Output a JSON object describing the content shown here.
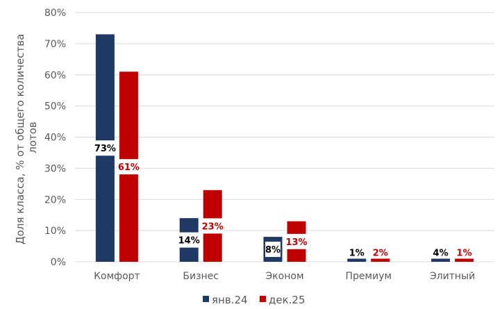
{
  "chart_data": {
    "type": "bar",
    "ylabel": "Доля класса, % от общего количества лотов",
    "ylim": [
      0,
      80
    ],
    "yticks": [
      "0%",
      "10%",
      "20%",
      "30%",
      "40%",
      "50%",
      "60%",
      "70%",
      "80%"
    ],
    "grid": true,
    "legend_position": "bottom",
    "categories": [
      "Комфорт",
      "Бизнес",
      "Эконом",
      "Премиум",
      "Элитный"
    ],
    "series": [
      {
        "name": "янв.24",
        "color": "#1f3864",
        "label_color": "#000000",
        "values": [
          73,
          14,
          8,
          1,
          4
        ],
        "labels": [
          "73%",
          "14%",
          "8%",
          "1%",
          "4%"
        ]
      },
      {
        "name": "дек.25",
        "color": "#c00000",
        "label_color": "#c00000",
        "values": [
          61,
          23,
          13,
          2,
          1
        ],
        "labels": [
          "61%",
          "23%",
          "13%",
          "2%",
          "1%"
        ]
      }
    ]
  }
}
